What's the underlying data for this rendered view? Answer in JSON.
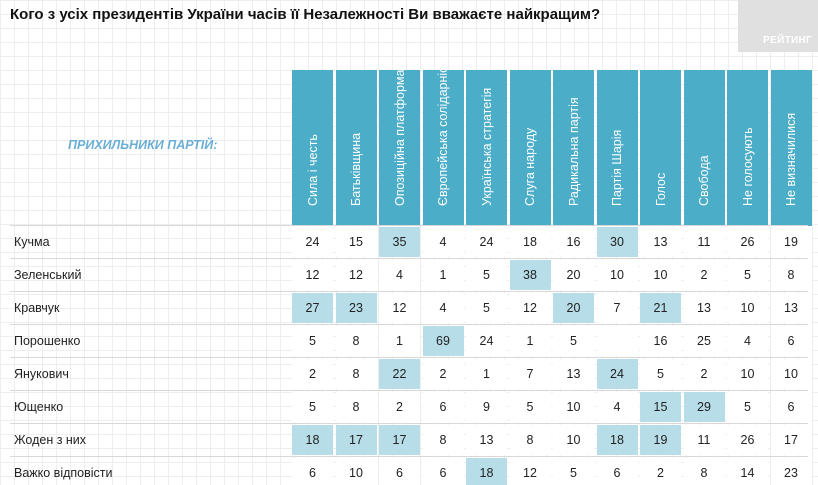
{
  "title": "Кого з усіх президентів України часів її Незалежності Ви вважаєте найкращим?",
  "logo_text": "РЕЙТИНГ",
  "colors": {
    "header": "#4badc8",
    "highlight": "#b7dde8",
    "group_label": "#6aaed6"
  },
  "chart_data": {
    "type": "table",
    "title": "Кого з усіх президентів України часів її Незалежності Ви вважаєте найкращим?",
    "row_header": "ПРИХИЛЬНИКИ ПАРТІЙ:",
    "columns": [
      "Сила і честь",
      "Батьківщина",
      "Опозиційна платформа",
      "Європейська солідарність",
      "Українська стратегія",
      "Слуга народу",
      "Радикальна партія",
      "Партія Шарія",
      "Голос",
      "Свобода",
      "Не голосують",
      "Не визначилися"
    ],
    "rows": [
      {
        "label": "Кучма",
        "values": [
          "24",
          "15",
          "35",
          "4",
          "24",
          "18",
          "16",
          "30",
          "13",
          "11",
          "26",
          "19"
        ],
        "highlight": [
          2,
          7
        ]
      },
      {
        "label": "Зеленський",
        "values": [
          "12",
          "12",
          "4",
          "1",
          "5",
          "38",
          "20",
          "10",
          "10",
          "2",
          "5",
          "8"
        ],
        "highlight": [
          5
        ]
      },
      {
        "label": "Кравчук",
        "values": [
          "27",
          "23",
          "12",
          "4",
          "5",
          "12",
          "20",
          "7",
          "21",
          "13",
          "10",
          "13"
        ],
        "highlight": [
          0,
          1,
          6,
          8
        ]
      },
      {
        "label": "Порошенко",
        "values": [
          "5",
          "8",
          "1",
          "69",
          "24",
          "1",
          "5",
          "",
          "16",
          "25",
          "4",
          "6"
        ],
        "highlight": [
          3
        ]
      },
      {
        "label": "Янукович",
        "values": [
          "2",
          "8",
          "22",
          "2",
          "1",
          "7",
          "13",
          "24",
          "5",
          "2",
          "10",
          "10"
        ],
        "highlight": [
          2,
          7
        ]
      },
      {
        "label": "Ющенко",
        "values": [
          "5",
          "8",
          "2",
          "6",
          "9",
          "5",
          "10",
          "4",
          "15",
          "29",
          "5",
          "6"
        ],
        "highlight": [
          8,
          9
        ]
      },
      {
        "label": "Жоден з них",
        "values": [
          "18",
          "17",
          "17",
          "8",
          "13",
          "8",
          "10",
          "18",
          "19",
          "11",
          "26",
          "17"
        ],
        "highlight": [
          0,
          1,
          2,
          7,
          8
        ]
      },
      {
        "label": "Важко відповісти",
        "values": [
          "6",
          "10",
          "6",
          "6",
          "18",
          "12",
          "5",
          "6",
          "2",
          "8",
          "14",
          "23"
        ],
        "highlight": [
          4
        ]
      }
    ]
  }
}
